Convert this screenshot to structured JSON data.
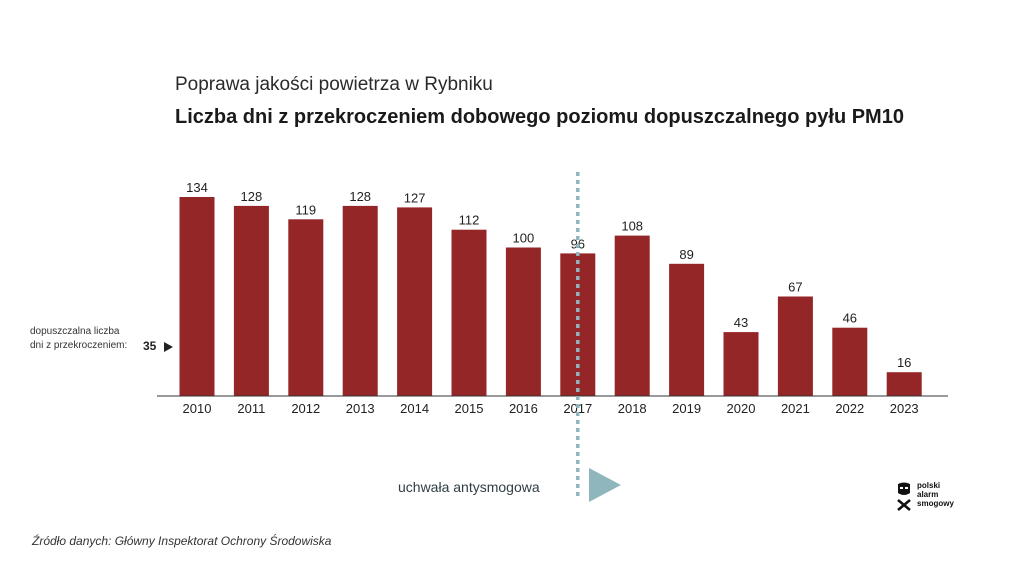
{
  "header": {
    "title": "Poprawa jakości powietrza w Rybniku",
    "subtitle": "Liczba dni z przekroczeniem dobowego poziomu dopuszczalnego pyłu PM10"
  },
  "threshold": {
    "label_line1": "dopuszczalna liczba",
    "label_line2": "dni z przekroczeniem:",
    "value": "35"
  },
  "policy": {
    "label": "uchwała antysmogowa",
    "year": "2017",
    "line_color": "#8fb5bd"
  },
  "source": "Źródło danych: Główny Inspektorat Ochrony Środowiska",
  "logo": {
    "icon": "alarm-mask-icon",
    "line1": "polski",
    "line2": "alarm",
    "line3": "smogowy"
  },
  "colors": {
    "bar": "#952628",
    "axis": "#333333",
    "policy": "#8fb5bd"
  },
  "chart_data": {
    "type": "bar",
    "categories": [
      "2010",
      "2011",
      "2012",
      "2013",
      "2014",
      "2015",
      "2016",
      "2017",
      "2018",
      "2019",
      "2020",
      "2021",
      "2022",
      "2023"
    ],
    "values": [
      134,
      128,
      119,
      128,
      127,
      112,
      100,
      96,
      108,
      89,
      43,
      67,
      46,
      16
    ],
    "title": "Liczba dni z przekroczeniem dobowego poziomu dopuszczalnego pyłu PM10",
    "xlabel": "",
    "ylabel": "",
    "ylim": [
      0,
      134
    ],
    "grid": false,
    "legend": "none",
    "annotations": [
      {
        "type": "threshold",
        "value": 35,
        "text": "dopuszczalna liczba dni z przekroczeniem: 35"
      },
      {
        "type": "vertical-line",
        "at": "2017",
        "text": "uchwała antysmogowa"
      }
    ]
  }
}
